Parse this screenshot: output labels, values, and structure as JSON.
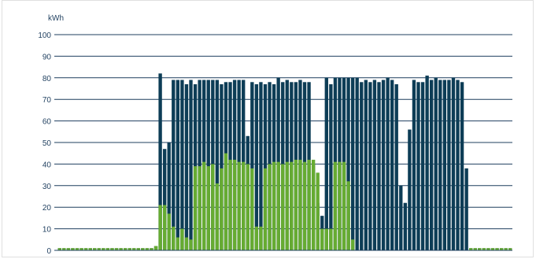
{
  "chart_data": {
    "type": "bar",
    "ylabel": "kWh",
    "ylim": [
      0,
      100
    ],
    "yticks": [
      "0",
      "10",
      "20",
      "30",
      "40",
      "50",
      "60",
      "70",
      "80",
      "90",
      "100"
    ],
    "grid": true,
    "colors": {
      "total": "#0d3d56",
      "green": "#66ab32",
      "grid": "#1f3f5f"
    },
    "series": [
      {
        "values": [
          1,
          1,
          1,
          1,
          1,
          1,
          1,
          1,
          1,
          1,
          1,
          1,
          1,
          1,
          1,
          1,
          1,
          1,
          1,
          1,
          1,
          1,
          2,
          82,
          47,
          50,
          79,
          79,
          79,
          77,
          79,
          77,
          79,
          79,
          79,
          79,
          79,
          77,
          78,
          78,
          79,
          79,
          79,
          53,
          78,
          77,
          78,
          77,
          78,
          77,
          80,
          78,
          79,
          78,
          78,
          79,
          78,
          78,
          40,
          22,
          16,
          80,
          77,
          80,
          80,
          80,
          80,
          80,
          80,
          78,
          79,
          78,
          79,
          78,
          79,
          80,
          79,
          77,
          30,
          22,
          56,
          79,
          78,
          78,
          81,
          79,
          80,
          79,
          79,
          79,
          80,
          79,
          78,
          38,
          1,
          1,
          1,
          1,
          1,
          1,
          1,
          1,
          1,
          1
        ]
      },
      {
        "values": [
          1,
          1,
          1,
          1,
          1,
          1,
          1,
          1,
          1,
          1,
          1,
          1,
          1,
          1,
          1,
          1,
          1,
          1,
          1,
          1,
          1,
          1,
          2,
          21,
          21,
          17,
          11,
          6,
          10,
          6,
          5,
          39,
          39,
          41,
          39,
          40,
          31,
          38,
          45,
          42,
          42,
          41,
          41,
          40,
          38,
          11,
          11,
          38,
          40,
          41,
          41,
          40,
          41,
          41,
          42,
          42,
          41,
          42,
          42,
          36,
          10,
          10,
          10,
          41,
          41,
          41,
          32,
          5,
          0,
          0,
          0,
          0,
          0,
          0,
          0,
          0,
          0,
          0,
          0,
          0,
          0,
          0,
          0,
          0,
          0,
          0,
          0,
          0,
          0,
          0,
          0,
          0,
          0,
          0,
          1,
          1,
          1,
          1,
          1,
          1,
          1,
          1,
          1,
          1
        ]
      }
    ]
  }
}
